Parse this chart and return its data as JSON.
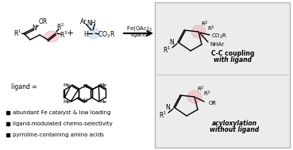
{
  "bg_color": "#ffffff",
  "right_panel_bg": "#ececec",
  "pink_color": "#F4A0B0",
  "blue_color": "#A8C4E0",
  "bullet_texts": [
    "abundant Fe catalyst & low loading",
    "ligand-modulated chemo-selectivity",
    "pyrroline-containing amino acids"
  ],
  "cc_label": "C-C coupling",
  "cc_sublabel": "with ligand",
  "acyl_label": "acyloxylation",
  "acyl_sublabel": "without ligand"
}
